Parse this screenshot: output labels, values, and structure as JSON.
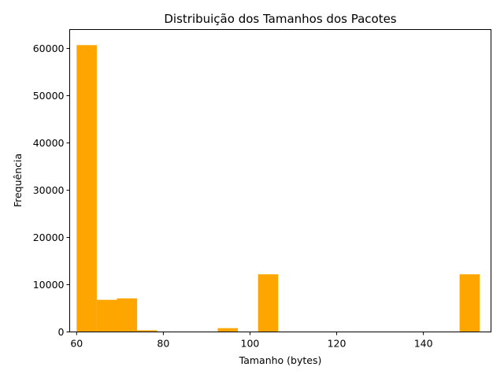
{
  "chart_data": {
    "type": "bar",
    "title": "Distribuição dos Tamanhos dos Pacotes",
    "xlabel": "Tamanho (bytes)",
    "ylabel": "Frequência",
    "xlim": [
      58.4,
      155.6
    ],
    "ylim": [
      0,
      64000
    ],
    "x_ticks": [
      60,
      80,
      100,
      120,
      140
    ],
    "y_ticks": [
      0,
      10000,
      20000,
      30000,
      40000,
      50000,
      60000
    ],
    "grid": false,
    "bar_color": "#ffa500",
    "bins": [
      {
        "start": 60.0,
        "end": 64.65,
        "value": 60700
      },
      {
        "start": 64.65,
        "end": 69.3,
        "value": 6800
      },
      {
        "start": 69.3,
        "end": 73.95,
        "value": 7100
      },
      {
        "start": 73.95,
        "end": 78.6,
        "value": 350
      },
      {
        "start": 78.6,
        "end": 83.25,
        "value": 0
      },
      {
        "start": 83.25,
        "end": 87.9,
        "value": 0
      },
      {
        "start": 87.9,
        "end": 92.55,
        "value": 0
      },
      {
        "start": 92.55,
        "end": 97.2,
        "value": 800
      },
      {
        "start": 97.2,
        "end": 101.85,
        "value": 0
      },
      {
        "start": 101.85,
        "end": 106.5,
        "value": 12200
      },
      {
        "start": 106.5,
        "end": 111.15,
        "value": 0
      },
      {
        "start": 111.15,
        "end": 115.8,
        "value": 0
      },
      {
        "start": 115.8,
        "end": 120.45,
        "value": 0
      },
      {
        "start": 120.45,
        "end": 125.1,
        "value": 0
      },
      {
        "start": 125.1,
        "end": 129.75,
        "value": 0
      },
      {
        "start": 129.75,
        "end": 134.4,
        "value": 0
      },
      {
        "start": 134.4,
        "end": 139.05,
        "value": 0
      },
      {
        "start": 139.05,
        "end": 143.7,
        "value": 0
      },
      {
        "start": 143.7,
        "end": 148.35,
        "value": 0
      },
      {
        "start": 148.35,
        "end": 153.0,
        "value": 12200
      }
    ]
  }
}
